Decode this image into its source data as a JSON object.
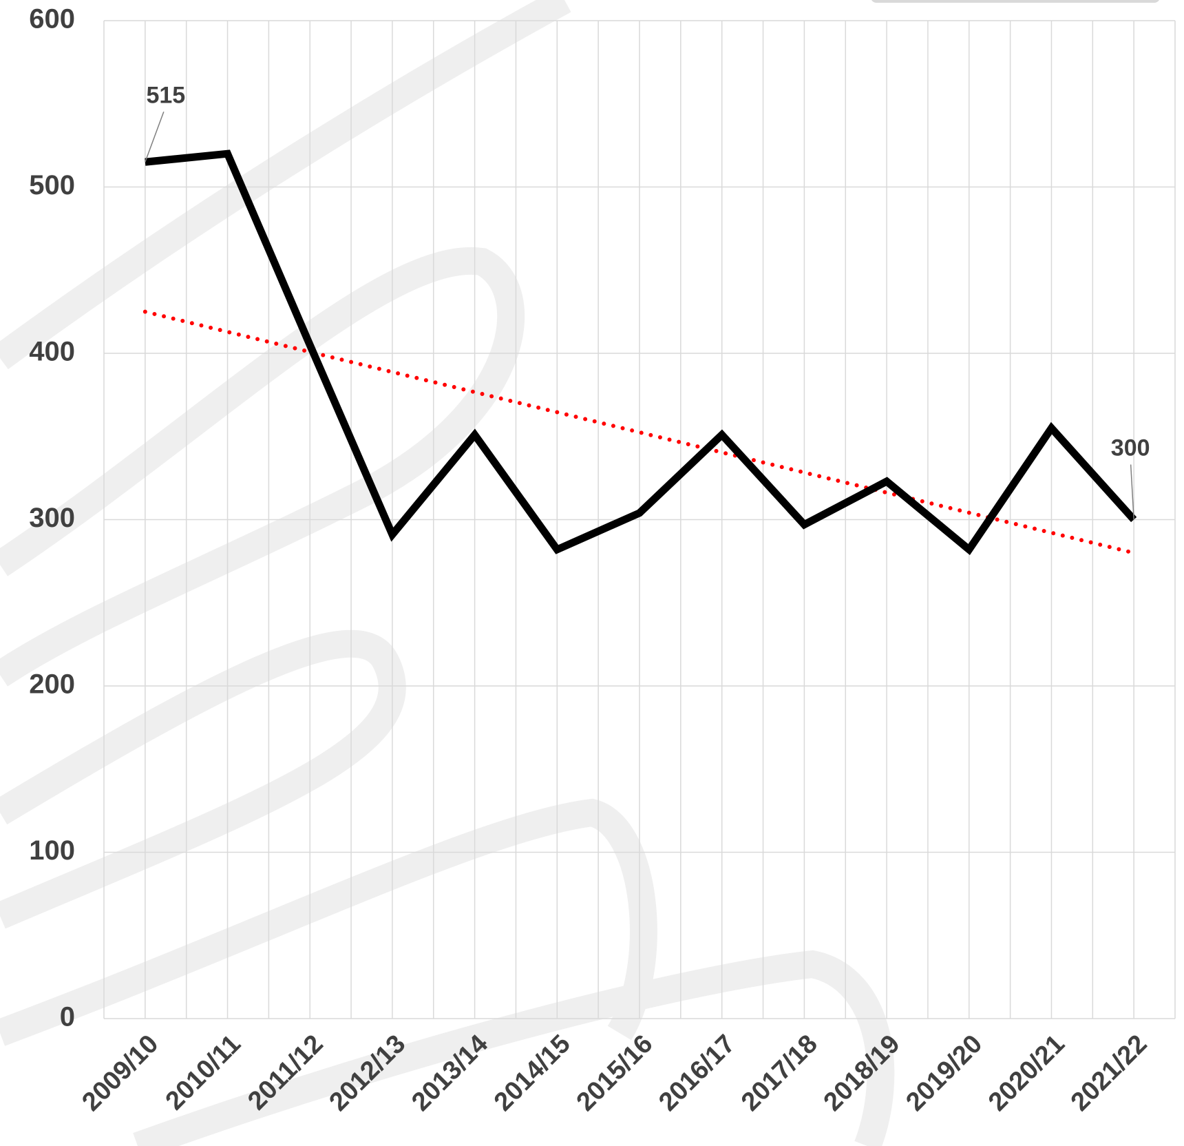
{
  "chart_data": {
    "type": "line",
    "categories": [
      "2009/10",
      "2010/11",
      "2011/12",
      "2012/13",
      "2013/14",
      "2014/15",
      "2015/16",
      "2016/17",
      "2017/18",
      "2018/19",
      "2019/20",
      "2020/21",
      "2021/22"
    ],
    "series": [
      {
        "color": "#000000",
        "values": [
          515,
          520,
          405,
          291,
          351,
          282,
          304,
          351,
          297,
          323,
          282,
          355,
          300
        ]
      }
    ],
    "data_labels": "first-last",
    "trend": {
      "color": "#ff0000",
      "start": 425,
      "end": 280
    },
    "ylim": [
      0,
      600
    ],
    "yticks": [
      0,
      100,
      200,
      300,
      400,
      500,
      600
    ],
    "grid": true
  }
}
